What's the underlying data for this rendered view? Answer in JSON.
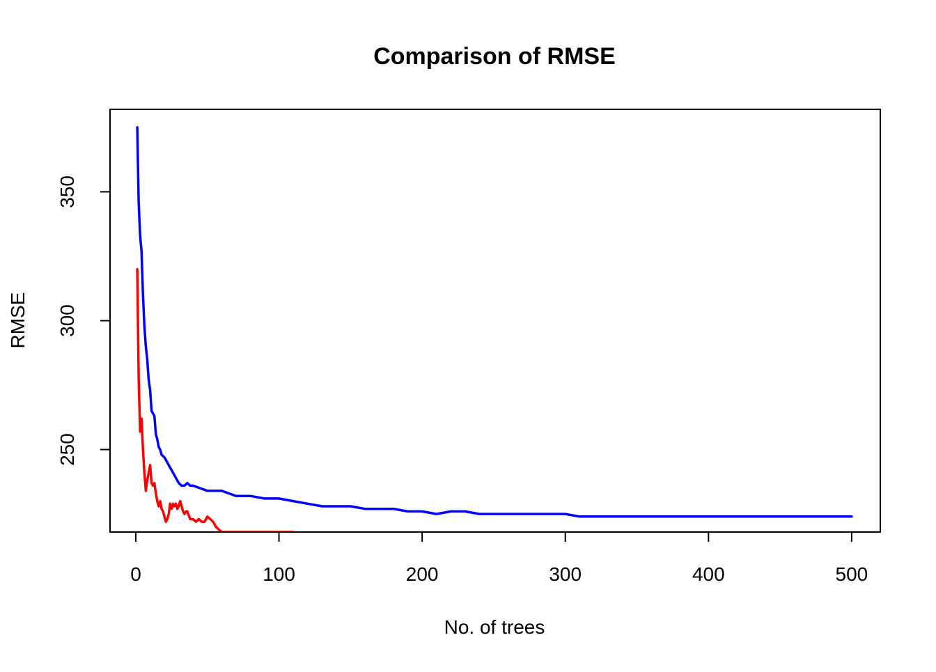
{
  "chart_data": {
    "type": "line",
    "title": "Comparison of RMSE",
    "xlabel": "No. of trees",
    "ylabel": "RMSE",
    "xlim": [
      -18,
      520
    ],
    "ylim": [
      218,
      382
    ],
    "x_ticks": [
      "0",
      "100",
      "200",
      "300",
      "400",
      "500"
    ],
    "y_ticks": [
      "250",
      "300",
      "350"
    ],
    "grid": false,
    "legend": "none",
    "series": [
      {
        "color": "#0000ff",
        "x": [
          1,
          2,
          3,
          4,
          5,
          6,
          7,
          8,
          9,
          10,
          11,
          12,
          13,
          14,
          15,
          16,
          17,
          18,
          20,
          22,
          24,
          26,
          28,
          30,
          32,
          34,
          36,
          38,
          40,
          45,
          50,
          55,
          60,
          65,
          70,
          80,
          90,
          100,
          110,
          120,
          130,
          140,
          150,
          160,
          170,
          180,
          190,
          200,
          210,
          220,
          230,
          240,
          250,
          260,
          270,
          280,
          290,
          300,
          310,
          320,
          330,
          340,
          350,
          360,
          370,
          380,
          390,
          400,
          410,
          420,
          430,
          440,
          450,
          460,
          470,
          480,
          490,
          500
        ],
        "y": [
          375,
          346,
          333,
          327,
          310,
          298,
          290,
          285,
          277,
          273,
          265,
          264,
          263,
          256,
          254,
          251,
          250,
          248,
          247,
          245,
          243,
          241,
          239,
          237,
          236,
          236,
          237,
          236,
          236,
          235,
          234,
          234,
          234,
          233,
          232,
          232,
          231,
          231,
          230,
          229,
          228,
          228,
          228,
          227,
          227,
          227,
          226,
          226,
          225,
          226,
          226,
          225,
          225,
          225,
          225,
          225,
          225,
          225,
          224,
          224,
          224,
          224,
          224,
          224,
          224,
          224,
          224,
          224,
          224,
          224,
          224,
          224,
          224,
          224,
          224,
          224,
          224,
          224
        ]
      },
      {
        "color": "#ff0000",
        "x": [
          1,
          2,
          3,
          4,
          5,
          6,
          7,
          8,
          9,
          10,
          11,
          12,
          13,
          14,
          15,
          16,
          17,
          18,
          19,
          20,
          21,
          22,
          23,
          24,
          25,
          26,
          27,
          28,
          29,
          30,
          31,
          32,
          33,
          34,
          35,
          36,
          38,
          40,
          42,
          44,
          46,
          48,
          50,
          52,
          54,
          56,
          58,
          60,
          62,
          64,
          66,
          68,
          70,
          72,
          74,
          76,
          78,
          80,
          82,
          84,
          90,
          100,
          110
        ],
        "y": [
          320,
          278,
          257,
          262,
          250,
          241,
          234,
          238,
          241,
          244,
          237,
          236,
          237,
          233,
          230,
          228,
          230,
          227,
          226,
          224,
          222,
          223,
          225,
          229,
          227,
          229,
          228,
          229,
          227,
          228,
          230,
          228,
          226,
          225,
          226,
          226,
          223,
          223,
          222,
          223,
          222,
          222,
          224,
          223,
          222,
          220,
          219,
          218,
          218,
          218,
          218,
          218,
          218,
          218,
          218,
          218,
          218,
          218,
          218,
          218,
          218,
          218,
          218
        ]
      }
    ]
  }
}
